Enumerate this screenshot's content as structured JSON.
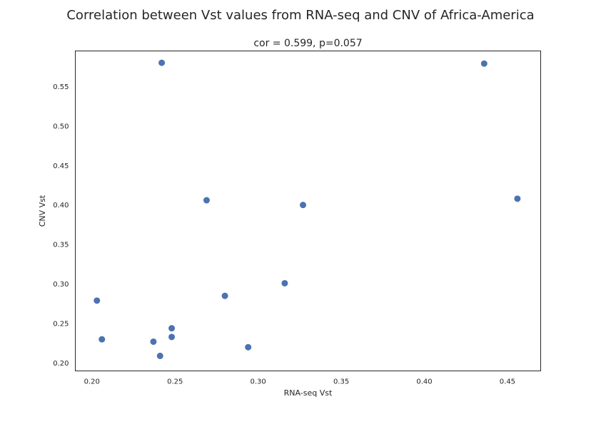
{
  "chart_data": {
    "type": "scatter",
    "suptitle": "Correlation between Vst values from RNA-seq and CNV of Africa-America",
    "title": "cor = 0.599, p=0.057",
    "xlabel": "RNA-seq Vst",
    "ylabel": "CNV Vst",
    "xlim": [
      0.19,
      0.47
    ],
    "ylim": [
      0.19,
      0.595
    ],
    "xticks": [
      "0.20",
      "0.25",
      "0.30",
      "0.35",
      "0.40",
      "0.45"
    ],
    "yticks": [
      "0.20",
      "0.25",
      "0.30",
      "0.35",
      "0.40",
      "0.45",
      "0.50",
      "0.55"
    ],
    "grid": false,
    "color": "#4c72b0",
    "points": [
      {
        "x": 0.242,
        "y": 0.58
      },
      {
        "x": 0.436,
        "y": 0.579
      },
      {
        "x": 0.269,
        "y": 0.406
      },
      {
        "x": 0.456,
        "y": 0.408
      },
      {
        "x": 0.327,
        "y": 0.4
      },
      {
        "x": 0.316,
        "y": 0.301
      },
      {
        "x": 0.28,
        "y": 0.285
      },
      {
        "x": 0.203,
        "y": 0.279
      },
      {
        "x": 0.248,
        "y": 0.244
      },
      {
        "x": 0.248,
        "y": 0.233
      },
      {
        "x": 0.206,
        "y": 0.23
      },
      {
        "x": 0.237,
        "y": 0.227
      },
      {
        "x": 0.294,
        "y": 0.22
      },
      {
        "x": 0.241,
        "y": 0.209
      }
    ]
  }
}
